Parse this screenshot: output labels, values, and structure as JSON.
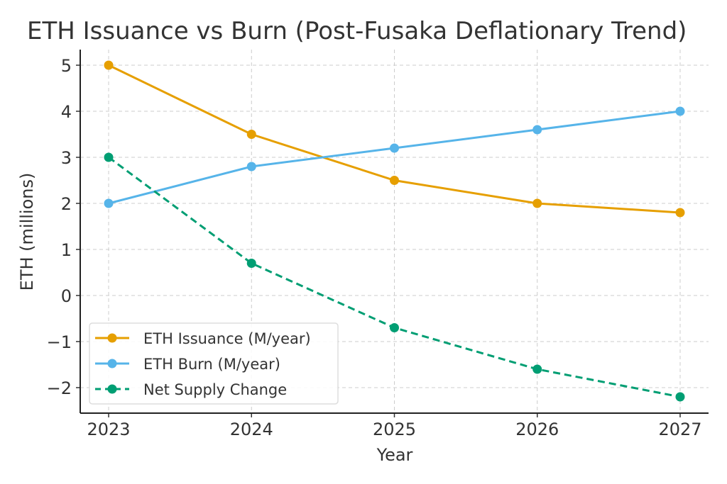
{
  "chart_data": {
    "type": "line",
    "title": "ETH Issuance vs Burn (Post-Fusaka Deflationary Trend)",
    "xlabel": "Year",
    "ylabel": "ETH (millions)",
    "x": [
      2023,
      2024,
      2025,
      2026,
      2027
    ],
    "x_tick_labels": [
      "2023",
      "2024",
      "2025",
      "2026",
      "2027"
    ],
    "y_ticks": [
      -2,
      -1,
      0,
      1,
      2,
      3,
      4,
      5
    ],
    "y_tick_labels": [
      "−2",
      "−1",
      "0",
      "1",
      "2",
      "3",
      "4",
      "5"
    ],
    "xlim": [
      2022.8,
      2027.2
    ],
    "ylim": [
      -2.55,
      5.35
    ],
    "grid": true,
    "legend_position": "lower-left",
    "series": [
      {
        "name": "ETH Issuance (M/year)",
        "values": [
          5.0,
          3.5,
          2.5,
          2.0,
          1.8
        ],
        "color": "#E69F00",
        "style": "solid"
      },
      {
        "name": "ETH Burn (M/year)",
        "values": [
          2.0,
          2.8,
          3.2,
          3.6,
          4.0
        ],
        "color": "#56B4E9",
        "style": "solid"
      },
      {
        "name": "Net Supply Change",
        "values": [
          3.0,
          0.7,
          -0.7,
          -1.6,
          -2.2
        ],
        "color": "#009E73",
        "style": "dashed"
      }
    ]
  }
}
